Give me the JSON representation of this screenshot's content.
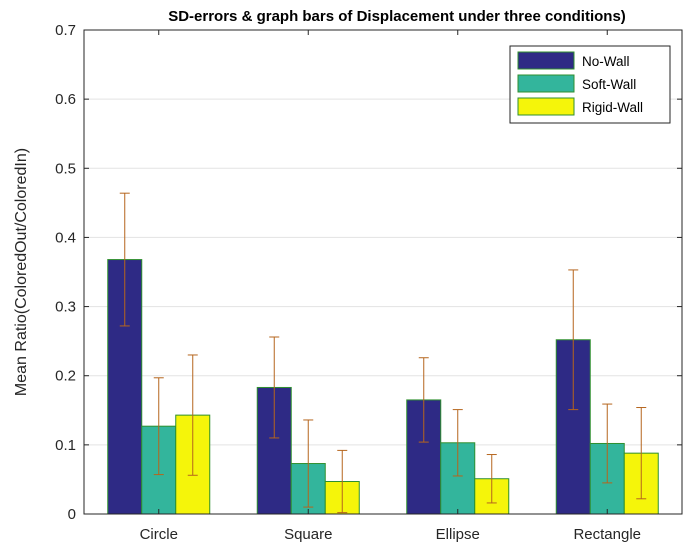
{
  "chart_data": {
    "type": "bar",
    "title": "SD-errors & graph bars of Displacement under three conditions)",
    "xlabel": "",
    "ylabel": "Mean Ratio(ColoredOut/ColoredIn)",
    "categories": [
      "Circle",
      "Square",
      "Ellipse",
      "Rectangle"
    ],
    "ylim": [
      0,
      0.7
    ],
    "yticks": [
      "0",
      "0.1",
      "0.2",
      "0.3",
      "0.4",
      "0.5",
      "0.6",
      "0.7"
    ],
    "grid": true,
    "legend_position": "top-right",
    "series": [
      {
        "name": "No-Wall",
        "color": "#2e2a85",
        "values": [
          0.368,
          0.183,
          0.165,
          0.252
        ],
        "errors": [
          0.096,
          0.073,
          0.061,
          0.101
        ],
        "error_color": "#b5651d"
      },
      {
        "name": "Soft-Wall",
        "color": "#33b59c",
        "values": [
          0.127,
          0.073,
          0.103,
          0.102
        ],
        "errors": [
          0.07,
          0.063,
          0.048,
          0.057
        ],
        "error_color": "#b5651d"
      },
      {
        "name": "Rigid-Wall",
        "color": "#f5f50a",
        "values": [
          0.143,
          0.047,
          0.051,
          0.088
        ],
        "errors": [
          0.087,
          0.045,
          0.035,
          0.066
        ],
        "error_color": "#b5651d"
      }
    ]
  }
}
